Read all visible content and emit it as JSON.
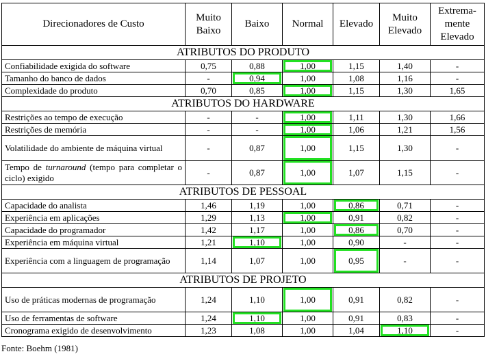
{
  "header": {
    "columns": [
      "Direcionadores de Custo",
      "Muito\nBaixo",
      "Baixo",
      "Normal",
      "Elevado",
      "Muito\nElevado",
      "Extrema-\nmente\nElevado"
    ]
  },
  "sections": [
    {
      "title": "ATRIBUTOS DO PRODUTO",
      "rows": [
        [
          "Confiabilidade exigida do software",
          "0,75",
          "0,88",
          "1,00",
          "1,15",
          "1,40",
          "-"
        ],
        [
          "Tamanho do banco de dados",
          "-",
          "0,94",
          "1,00",
          "1,08",
          "1,16",
          "-"
        ],
        [
          "Complexidade do produto",
          "0,70",
          "0,85",
          "1,00",
          "1,15",
          "1,30",
          "1,65"
        ]
      ]
    },
    {
      "title": "ATRIBUTOS DO HARDWARE",
      "rows": [
        [
          "Restrições ao tempo de execução",
          "-",
          "-",
          "1,00",
          "1,11",
          "1,30",
          "1,66"
        ],
        [
          "Restrições de memória",
          "-",
          "-",
          "1,00",
          "1,06",
          "1,21",
          "1,56"
        ],
        [
          "Volatilidade do ambiente de máquina virtual",
          "-",
          "0,87",
          "1,00",
          "1,15",
          "1,30",
          "-"
        ],
        [
          "Tempo de turnaround (tempo para completar o ciclo) exigido",
          "-",
          "0,87",
          "1,00",
          "1,07",
          "1,15",
          "-"
        ]
      ]
    },
    {
      "title": "ATRIBUTOS DE PESSOAL",
      "rows": [
        [
          "Capacidade do analista",
          "1,46",
          "1,19",
          "1,00",
          "0,86",
          "0,71",
          "-"
        ],
        [
          "Experiência em aplicações",
          "1,29",
          "1,13",
          "1,00",
          "0,91",
          "0,82",
          "-"
        ],
        [
          "Capacidade do programador",
          "1,42",
          "1,17",
          "1,00",
          "0,86",
          "0,70",
          "-"
        ],
        [
          "Experiência em máquina virtual",
          "1,21",
          "1,10",
          "1,00",
          "0,90",
          "-",
          "-"
        ],
        [
          "Experiência com a linguagem de programação",
          "1,14",
          "1,07",
          "1,00",
          "0,95",
          "-",
          "-"
        ]
      ]
    },
    {
      "title": "ATRIBUTOS DE PROJETO",
      "rows": [
        [
          "Uso de práticas modernas de programação",
          "1,24",
          "1,10",
          "1,00",
          "0,91",
          "0,82",
          "-"
        ],
        [
          "Uso de ferramentas de software",
          "1,24",
          "1,10",
          "1,00",
          "0,91",
          "0,83",
          "-"
        ],
        [
          "Cronograma exigido de desenvolvimento",
          "1,23",
          "1,08",
          "1,00",
          "1,04",
          "1,10",
          "-"
        ]
      ]
    }
  ],
  "source": "Fonte: Boehm (1981)"
}
